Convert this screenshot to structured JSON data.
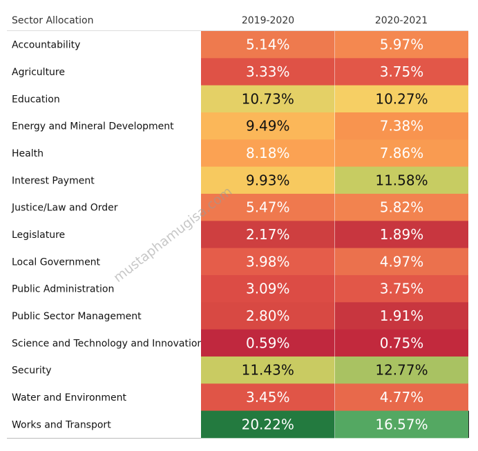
{
  "chart_data": {
    "type": "heatmap",
    "row_header": "Sector Allocation",
    "columns": [
      "2019-2020",
      "2020-2021"
    ],
    "rows": [
      {
        "label": "Accountability",
        "values": [
          "5.14%",
          "5.97%"
        ]
      },
      {
        "label": "Agriculture",
        "values": [
          "3.33%",
          "3.75%"
        ]
      },
      {
        "label": "Education",
        "values": [
          "10.73%",
          "10.27%"
        ]
      },
      {
        "label": "Energy and Mineral Development",
        "values": [
          "9.49%",
          "7.38%"
        ]
      },
      {
        "label": "Health",
        "values": [
          "8.18%",
          "7.86%"
        ]
      },
      {
        "label": "Interest Payment",
        "values": [
          "9.93%",
          "11.58%"
        ]
      },
      {
        "label": "Justice/Law and Order",
        "values": [
          "5.47%",
          "5.82%"
        ]
      },
      {
        "label": "Legislature",
        "values": [
          "2.17%",
          "1.89%"
        ]
      },
      {
        "label": "Local Government",
        "values": [
          "3.98%",
          "4.97%"
        ]
      },
      {
        "label": "Public Administration",
        "values": [
          "3.09%",
          "3.75%"
        ]
      },
      {
        "label": "Public Sector Management",
        "values": [
          "2.80%",
          "1.91%"
        ]
      },
      {
        "label": "Science and Technology and Innovation",
        "values": [
          "0.59%",
          "0.75%"
        ]
      },
      {
        "label": "Security",
        "values": [
          "11.43%",
          "12.77%"
        ]
      },
      {
        "label": "Water and Environment",
        "values": [
          "3.45%",
          "4.77%"
        ]
      },
      {
        "label": "Works and Transport",
        "values": [
          "20.22%",
          "16.57%"
        ]
      }
    ],
    "colors": {
      "0.59%": "#c0283e",
      "0.75%": "#c2293d",
      "1.89%": "#c8363f",
      "1.91%": "#c8363f",
      "2.17%": "#ce3f40",
      "2.80%": "#d84943",
      "3.09%": "#dc4c45",
      "3.33%": "#df5246",
      "3.45%": "#e05547",
      "3.75%": "#e25748",
      "3.98%": "#e55d4a",
      "4.77%": "#e8694b",
      "4.97%": "#eb714d",
      "5.14%": "#ee7a4e",
      "5.47%": "#ef794e",
      "5.82%": "#f2834f",
      "5.97%": "#f48850",
      "7.38%": "#f8944f",
      "7.86%": "#f99b51",
      "8.18%": "#fba253",
      "9.49%": "#fbb759",
      "9.93%": "#f7c95f",
      "10.27%": "#f6cf64",
      "10.73%": "#e4d066",
      "11.43%": "#c9cb62",
      "11.58%": "#c7cc62",
      "12.77%": "#a9c262",
      "16.57%": "#54a862",
      "20.22%": "#237a3f"
    },
    "text_colors": {
      "dark_on": [
        "9.49%",
        "9.93%",
        "10.27%",
        "10.73%",
        "11.43%",
        "11.58%",
        "12.77%"
      ],
      "dark": "#111111",
      "light": "#ffffff"
    },
    "header_rule_color": "#dddddd",
    "row_rule_color": "#bbbbbb"
  },
  "watermark": "mustaphamugisa.com"
}
